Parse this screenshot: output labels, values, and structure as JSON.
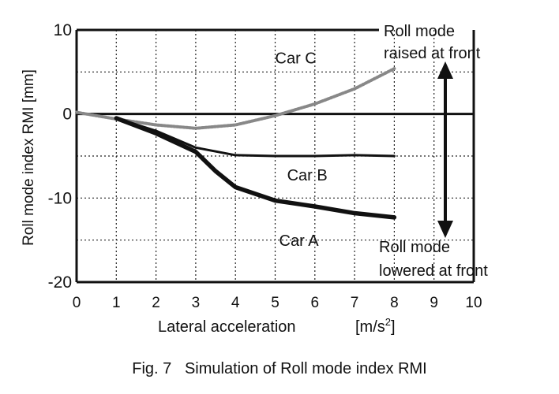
{
  "chart_data": {
    "type": "line",
    "xlabel": "Lateral acceleration",
    "xunit": "[m/s2]",
    "ylabel": "Roll mode index RMI [mm]",
    "xlim": [
      0,
      10
    ],
    "ylim": [
      -20,
      10
    ],
    "x_ticks": [
      0,
      1,
      2,
      3,
      4,
      5,
      6,
      7,
      8,
      9,
      10
    ],
    "y_ticks": [
      10,
      0,
      -10,
      -20
    ],
    "grid": true,
    "series": [
      {
        "name": "Car C",
        "style": "dotted",
        "x": [
          0,
          1,
          2,
          3,
          4,
          5,
          6,
          7,
          8
        ],
        "y": [
          0.2,
          -0.6,
          -1.3,
          -1.7,
          -1.3,
          -0.2,
          1.2,
          3.0,
          5.4
        ]
      },
      {
        "name": "Car B",
        "style": "solid",
        "x": [
          1,
          2,
          3,
          4,
          5,
          6,
          7,
          8
        ],
        "y": [
          -0.5,
          -2.0,
          -4.0,
          -4.9,
          -5.0,
          -5.0,
          -4.9,
          -5.0
        ]
      },
      {
        "name": "Car A",
        "style": "thick",
        "x": [
          1,
          2,
          3,
          3.5,
          4,
          5,
          6,
          7,
          8
        ],
        "y": [
          -0.5,
          -2.3,
          -4.5,
          -6.8,
          -8.7,
          -10.3,
          -11.0,
          -11.8,
          -12.3
        ]
      }
    ],
    "annotations": {
      "top": [
        "Roll mode",
        "raised at front"
      ],
      "bottom": [
        "Roll mode",
        "lowered at front"
      ]
    }
  },
  "caption": "Fig. 7   Simulation of Roll mode index RMI"
}
